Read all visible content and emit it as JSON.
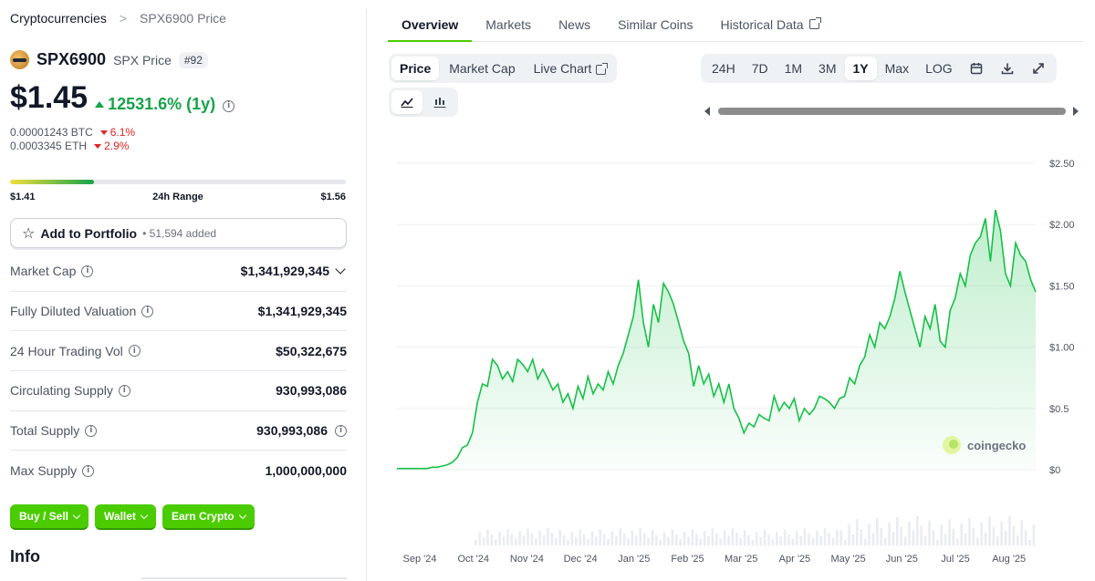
{
  "breadcrumb": {
    "root": "Cryptocurrencies",
    "separator": ">",
    "current": "SPX6900 Price"
  },
  "coin": {
    "name": "SPX6900",
    "ticker_label": "SPX Price",
    "rank": "#92"
  },
  "price": {
    "value": "$1.45",
    "change": "12531.6% (1y)",
    "btc": "0.00001243 BTC",
    "btc_change": "6.1%",
    "eth": "0.0003345 ETH",
    "eth_change": "2.9%"
  },
  "range": {
    "low": "$1.41",
    "label": "24h Range",
    "high": "$1.56",
    "position": 0.25
  },
  "portfolio": {
    "label": "Add to Portfolio",
    "count": "• 51,594 added"
  },
  "stats": [
    {
      "label": "Market Cap",
      "value": "$1,341,929,345"
    },
    {
      "label": "Fully Diluted Valuation",
      "value": "$1,341,929,345"
    },
    {
      "label": "24 Hour Trading Vol",
      "value": "$50,322,675"
    },
    {
      "label": "Circulating Supply",
      "value": "930,993,086"
    },
    {
      "label": "Total Supply",
      "value": "930,993,086"
    },
    {
      "label": "Max Supply",
      "value": "1,000,000,000"
    }
  ],
  "actions": [
    "Buy / Sell",
    "Wallet",
    "Earn Crypto"
  ],
  "info_heading": "Info",
  "tabs": [
    "Overview",
    "Markets",
    "News",
    "Similar Coins",
    "Historical Data"
  ],
  "chart_controls": {
    "types": [
      "Price",
      "Market Cap",
      "Live Chart"
    ],
    "ranges": [
      "24H",
      "7D",
      "1M",
      "3M",
      "1Y",
      "Max",
      "LOG"
    ],
    "active_type": "Price",
    "active_range": "1Y"
  },
  "watermark": "coingecko",
  "colors": {
    "accent": "#4bcc00",
    "up": "#16a34a",
    "down": "#dc2626",
    "line": "#16c147"
  },
  "chart_data": {
    "type": "area",
    "x_labels": [
      "Sep '24",
      "Oct '24",
      "Nov '24",
      "Dec '24",
      "Jan '25",
      "Feb '25",
      "Mar '25",
      "Apr '25",
      "May '25",
      "Jun '25",
      "Jul '25",
      "Aug '25"
    ],
    "y_ticks": [
      "$0",
      "$0.5",
      "$1.00",
      "$1.50",
      "$2.00",
      "$2.50"
    ],
    "ylim": [
      0,
      2.5
    ],
    "grid": true,
    "series": [
      {
        "values": [
          0.01,
          0.01,
          0.01,
          0.01,
          0.01,
          0.01,
          0.01,
          0.02,
          0.02,
          0.03,
          0.04,
          0.06,
          0.1,
          0.18,
          0.2,
          0.3,
          0.55,
          0.7,
          0.68,
          0.9,
          0.85,
          0.74,
          0.8,
          0.72,
          0.9,
          0.86,
          0.8,
          0.9,
          0.74,
          0.82,
          0.74,
          0.65,
          0.7,
          0.55,
          0.62,
          0.5,
          0.68,
          0.58,
          0.76,
          0.62,
          0.7,
          0.65,
          0.8,
          0.7,
          0.85,
          0.95,
          1.1,
          1.25,
          1.55,
          1.2,
          1.0,
          1.35,
          1.2,
          1.52,
          1.45,
          1.35,
          1.2,
          1.05,
          0.95,
          0.68,
          0.85,
          0.7,
          0.78,
          0.6,
          0.7,
          0.55,
          0.7,
          0.5,
          0.42,
          0.3,
          0.38,
          0.35,
          0.45,
          0.42,
          0.4,
          0.6,
          0.48,
          0.55,
          0.5,
          0.58,
          0.4,
          0.5,
          0.45,
          0.5,
          0.6,
          0.58,
          0.55,
          0.5,
          0.58,
          0.6,
          0.75,
          0.7,
          0.85,
          0.92,
          1.1,
          1.0,
          1.2,
          1.15,
          1.25,
          1.4,
          1.62,
          1.45,
          1.3,
          1.15,
          1.0,
          1.25,
          1.15,
          1.35,
          1.05,
          1.0,
          1.3,
          1.4,
          1.6,
          1.5,
          1.75,
          1.85,
          1.9,
          2.05,
          1.7,
          2.12,
          1.95,
          1.6,
          1.5,
          1.85,
          1.75,
          1.7,
          1.55,
          1.45
        ]
      }
    ]
  }
}
